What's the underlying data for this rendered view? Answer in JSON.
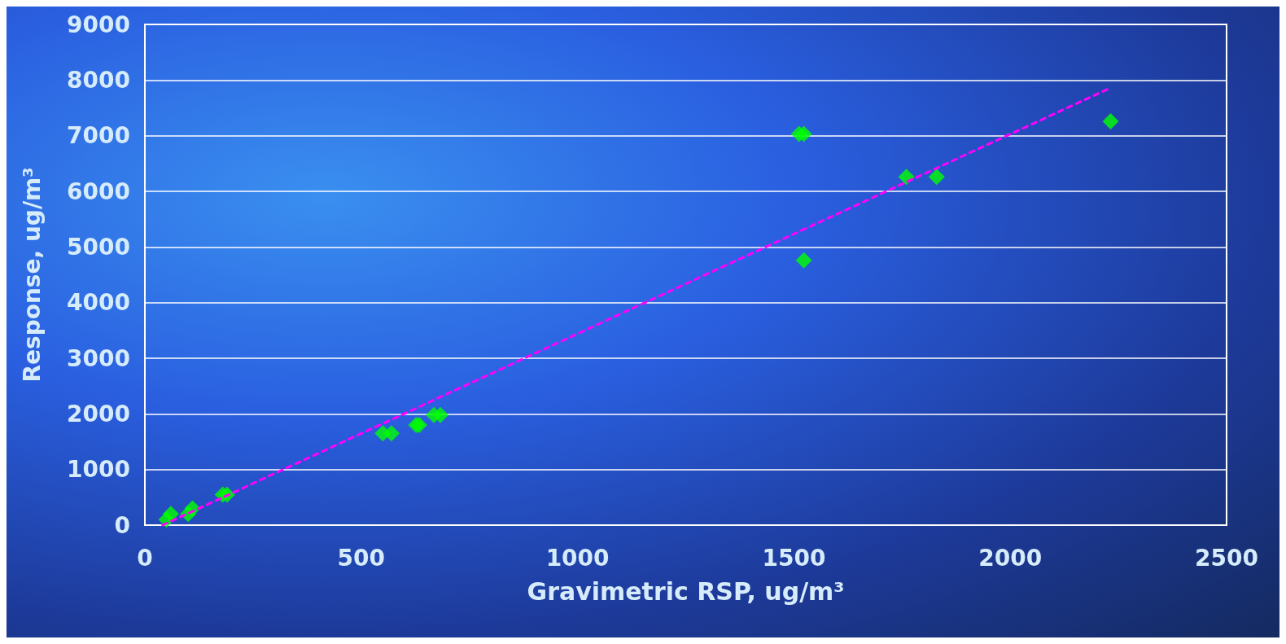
{
  "chart_data": {
    "type": "scatter",
    "xlabel": "Gravimetric RSP, ug/m³",
    "ylabel": "Response, ug/m³",
    "xlim": [
      0,
      2500
    ],
    "xticks": [
      0,
      500,
      1000,
      1500,
      2000,
      2500
    ],
    "ylim": [
      0,
      9000
    ],
    "yticks": [
      0,
      1000,
      2000,
      3000,
      4000,
      5000,
      6000,
      7000,
      8000,
      9000
    ],
    "grid": "y",
    "marker": "diamond",
    "series": [
      {
        "type": "scatter",
        "color": "#00ff00",
        "x": [
          50,
          60,
          100,
          110,
          180,
          190,
          550,
          570,
          627,
          634,
          668,
          683,
          1512,
          1523,
          1523,
          1760,
          1830,
          2232
        ],
        "values": [
          100,
          200,
          200,
          300,
          550,
          550,
          1650,
          1650,
          1800,
          1800,
          1980,
          1980,
          7030,
          7030,
          4760,
          6260,
          6260,
          7260
        ]
      },
      {
        "type": "line",
        "color": "#ff00ff",
        "line_style": "dashed",
        "marker": "none",
        "x": [
          41,
          2232
        ],
        "values": [
          0,
          7860
        ]
      }
    ]
  }
}
